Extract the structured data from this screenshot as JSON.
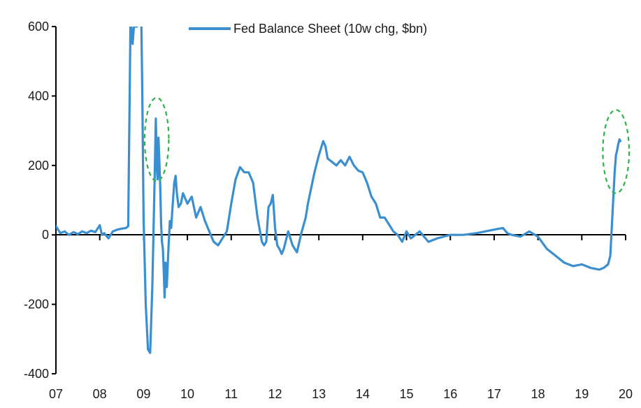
{
  "chart_data": {
    "type": "line",
    "title": "",
    "xlabel": "",
    "ylabel": "",
    "xlim": [
      2007,
      2020
    ],
    "ylim": [
      -400,
      600
    ],
    "yticks": [
      600,
      400,
      200,
      0,
      -200,
      -400
    ],
    "xticks": [
      {
        "label": "07",
        "value": 2007
      },
      {
        "label": "08",
        "value": 2008
      },
      {
        "label": "09",
        "value": 2009
      },
      {
        "label": "10",
        "value": 2010
      },
      {
        "label": "11",
        "value": 2011
      },
      {
        "label": "12",
        "value": 2012
      },
      {
        "label": "13",
        "value": 2013
      },
      {
        "label": "14",
        "value": 2014
      },
      {
        "label": "15",
        "value": 2015
      },
      {
        "label": "16",
        "value": 2016
      },
      {
        "label": "17",
        "value": 2017
      },
      {
        "label": "18",
        "value": 2018
      },
      {
        "label": "19",
        "value": 2019
      },
      {
        "label": "20",
        "value": 2020
      }
    ],
    "grid": false,
    "legend": {
      "placement": "top-center",
      "entries": [
        "Fed Balance Sheet (10w chg, $bn)"
      ]
    },
    "series": [
      {
        "name": "Fed Balance Sheet (10w chg, $bn)",
        "color": "#3a8fd0",
        "x": [
          2007.0,
          2007.1,
          2007.2,
          2007.3,
          2007.4,
          2007.5,
          2007.6,
          2007.7,
          2007.8,
          2007.9,
          2008.0,
          2008.05,
          2008.1,
          2008.2,
          2008.3,
          2008.4,
          2008.5,
          2008.6,
          2008.65,
          2008.7,
          2008.72,
          2008.75,
          2008.78,
          2008.8,
          2008.85,
          2008.9,
          2008.95,
          2008.97,
          2009.0,
          2009.05,
          2009.1,
          2009.15,
          2009.2,
          2009.25,
          2009.28,
          2009.3,
          2009.32,
          2009.34,
          2009.36,
          2009.38,
          2009.4,
          2009.42,
          2009.44,
          2009.46,
          2009.48,
          2009.5,
          2009.53,
          2009.56,
          2009.6,
          2009.63,
          2009.66,
          2009.7,
          2009.73,
          2009.76,
          2009.8,
          2009.85,
          2009.9,
          2010.0,
          2010.1,
          2010.2,
          2010.3,
          2010.4,
          2010.5,
          2010.6,
          2010.7,
          2010.8,
          2010.9,
          2011.0,
          2011.1,
          2011.2,
          2011.3,
          2011.4,
          2011.5,
          2011.6,
          2011.7,
          2011.75,
          2011.8,
          2011.85,
          2011.9,
          2011.95,
          2012.0,
          2012.05,
          2012.1,
          2012.15,
          2012.2,
          2012.3,
          2012.4,
          2012.5,
          2012.6,
          2012.7,
          2012.75,
          2012.8,
          2012.9,
          2013.0,
          2013.1,
          2013.15,
          2013.2,
          2013.3,
          2013.4,
          2013.5,
          2013.6,
          2013.7,
          2013.8,
          2013.9,
          2014.0,
          2014.1,
          2014.2,
          2014.3,
          2014.4,
          2014.5,
          2014.6,
          2014.7,
          2014.8,
          2014.9,
          2015.0,
          2015.1,
          2015.2,
          2015.3,
          2015.5,
          2015.7,
          2016.0,
          2016.3,
          2016.6,
          2017.0,
          2017.2,
          2017.3,
          2017.4,
          2017.6,
          2017.8,
          2018.0,
          2018.2,
          2018.4,
          2018.6,
          2018.8,
          2019.0,
          2019.2,
          2019.4,
          2019.5,
          2019.6,
          2019.65,
          2019.7,
          2019.75,
          2019.78,
          2019.8,
          2019.83,
          2019.86,
          2019.88
        ],
        "values": [
          25,
          5,
          10,
          0,
          8,
          2,
          10,
          5,
          12,
          8,
          28,
          0,
          5,
          -10,
          10,
          15,
          18,
          20,
          25,
          600,
          600,
          550,
          600,
          600,
          600,
          620,
          600,
          420,
          50,
          -200,
          -330,
          -340,
          -150,
          150,
          335,
          200,
          160,
          280,
          210,
          140,
          30,
          -20,
          -40,
          -100,
          -180,
          -80,
          -150,
          -60,
          40,
          20,
          80,
          150,
          170,
          120,
          80,
          90,
          120,
          90,
          110,
          50,
          80,
          40,
          10,
          -20,
          -30,
          -10,
          10,
          90,
          160,
          195,
          180,
          180,
          150,
          50,
          -20,
          -30,
          -20,
          80,
          90,
          115,
          20,
          -30,
          -40,
          -55,
          -40,
          10,
          -30,
          -50,
          5,
          50,
          90,
          120,
          180,
          230,
          270,
          255,
          220,
          210,
          200,
          215,
          200,
          225,
          200,
          185,
          180,
          150,
          110,
          90,
          50,
          50,
          30,
          10,
          0,
          -20,
          10,
          -10,
          0,
          10,
          -20,
          -10,
          0,
          0,
          5,
          15,
          20,
          5,
          0,
          -5,
          10,
          -5,
          -40,
          -60,
          -80,
          -90,
          -85,
          -95,
          -100,
          -95,
          -85,
          -60,
          60,
          180,
          230,
          240,
          260,
          275,
          270
        ]
      }
    ],
    "annotations": [
      {
        "shape": "dashed-ellipse",
        "color": "#2db34a",
        "center_x": 2009.3,
        "center_y": 275,
        "span_x": 0.55,
        "span_y": 240
      },
      {
        "shape": "dashed-ellipse",
        "color": "#2db34a",
        "center_x": 2019.78,
        "center_y": 240,
        "span_x": 0.6,
        "span_y": 240
      }
    ]
  }
}
